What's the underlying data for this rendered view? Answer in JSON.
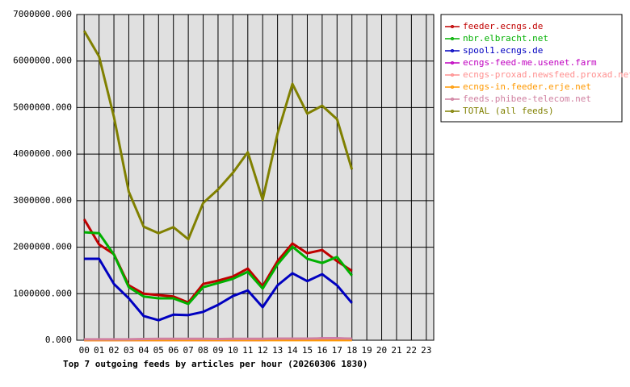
{
  "chart_data": {
    "type": "line",
    "title": "Top 7 outgoing feeds by articles per hour (20260306 1830)",
    "categories": [
      "00",
      "01",
      "02",
      "03",
      "04",
      "05",
      "06",
      "07",
      "08",
      "09",
      "10",
      "11",
      "12",
      "13",
      "14",
      "15",
      "16",
      "17",
      "18",
      "19",
      "20",
      "21",
      "22",
      "23"
    ],
    "ylim": [
      0,
      7000000
    ],
    "yticks": [
      {
        "value": 0,
        "label": "0.000"
      },
      {
        "value": 1000000,
        "label": "1000000.000"
      },
      {
        "value": 2000000,
        "label": "2000000.000"
      },
      {
        "value": 3000000,
        "label": "3000000.000"
      },
      {
        "value": 4000000,
        "label": "4000000.000"
      },
      {
        "value": 5000000,
        "label": "5000000.000"
      },
      {
        "value": 6000000,
        "label": "6000000.000"
      },
      {
        "value": 7000000,
        "label": "7000000.000"
      }
    ],
    "grid": true,
    "legend": "right",
    "series": [
      {
        "name": "feeder.ecngs.de",
        "color": "#c00000",
        "values": [
          2600000,
          2060000,
          1850000,
          1180000,
          1000000,
          970000,
          940000,
          810000,
          1210000,
          1280000,
          1370000,
          1540000,
          1160000,
          1700000,
          2080000,
          1870000,
          1940000,
          1700000,
          1490000,
          null,
          null,
          null,
          null,
          null
        ]
      },
      {
        "name": "nbr.elbracht.net",
        "color": "#00b000",
        "values": [
          2320000,
          2300000,
          1840000,
          1140000,
          940000,
          900000,
          900000,
          780000,
          1140000,
          1230000,
          1320000,
          1470000,
          1110000,
          1630000,
          2010000,
          1750000,
          1660000,
          1790000,
          1390000,
          null,
          null,
          null,
          null,
          null
        ]
      },
      {
        "name": "spool1.ecngs.de",
        "color": "#0000c0",
        "values": [
          1750000,
          1750000,
          1210000,
          900000,
          520000,
          430000,
          550000,
          540000,
          610000,
          760000,
          950000,
          1070000,
          710000,
          1180000,
          1440000,
          1270000,
          1420000,
          1180000,
          800000,
          null,
          null,
          null,
          null,
          null
        ]
      },
      {
        "name": "ecngs-feed-me.usenet.farm",
        "color": "#c000c0",
        "values": [
          5000,
          5000,
          5000,
          5000,
          5000,
          5000,
          5000,
          5000,
          5000,
          5000,
          5000,
          5000,
          5000,
          20000,
          25000,
          25000,
          40000,
          40000,
          30000,
          null,
          null,
          null,
          null,
          null
        ]
      },
      {
        "name": "ecngs-proxad.newsfeed.proxad.net",
        "color": "#ff9090",
        "values": [
          10000,
          10000,
          10000,
          10000,
          10000,
          15000,
          15000,
          15000,
          15000,
          10000,
          15000,
          15000,
          15000,
          15000,
          15000,
          15000,
          20000,
          20000,
          15000,
          null,
          null,
          null,
          null,
          null
        ]
      },
      {
        "name": "ecngs-in.feeder.erje.net",
        "color": "#ff9900",
        "values": [
          3000,
          3000,
          3000,
          3000,
          3000,
          3000,
          3000,
          3000,
          3000,
          3000,
          3000,
          3000,
          3000,
          3000,
          3000,
          3000,
          3000,
          3000,
          3000,
          null,
          null,
          null,
          null,
          null
        ]
      },
      {
        "name": "feeds.phibee-telecom.net",
        "color": "#d080a0",
        "values": [
          20000,
          20000,
          20000,
          20000,
          25000,
          30000,
          30000,
          30000,
          30000,
          25000,
          30000,
          30000,
          30000,
          35000,
          35000,
          35000,
          40000,
          40000,
          35000,
          null,
          null,
          null,
          null,
          null
        ]
      },
      {
        "name": "TOTAL (all feeds)",
        "color": "#808000",
        "values": [
          6650000,
          6100000,
          4800000,
          3190000,
          2440000,
          2300000,
          2430000,
          2170000,
          2950000,
          3240000,
          3600000,
          4040000,
          3020000,
          4440000,
          5510000,
          4870000,
          5040000,
          4750000,
          3670000,
          null,
          null,
          null,
          null,
          null
        ]
      }
    ]
  }
}
